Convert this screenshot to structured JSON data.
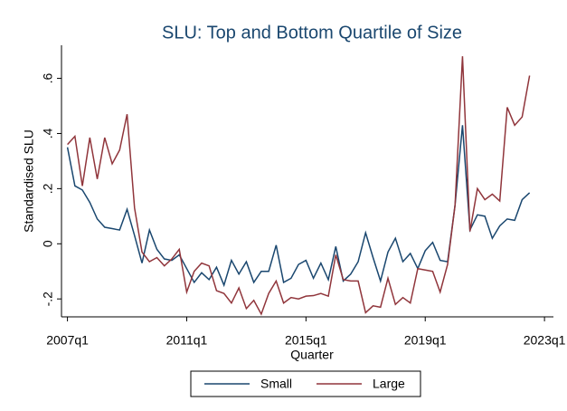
{
  "chart_data": {
    "type": "line",
    "title": "SLU: Top and Bottom Quartile of Size",
    "xlabel": "Quarter",
    "ylabel": "Standardised SLU",
    "x": [
      2007,
      2007.25,
      2007.5,
      2007.75,
      2008,
      2008.25,
      2008.5,
      2008.75,
      2009,
      2009.25,
      2009.5,
      2009.75,
      2010,
      2010.25,
      2010.5,
      2010.75,
      2011,
      2011.25,
      2011.5,
      2011.75,
      2012,
      2012.25,
      2012.5,
      2012.75,
      2013,
      2013.25,
      2013.5,
      2013.75,
      2014,
      2014.25,
      2014.5,
      2014.75,
      2015,
      2015.25,
      2015.5,
      2015.75,
      2016,
      2016.25,
      2016.5,
      2016.75,
      2017,
      2017.25,
      2017.5,
      2017.75,
      2018,
      2018.25,
      2018.5,
      2018.75,
      2019,
      2019.25,
      2019.5,
      2019.75,
      2020,
      2020.25,
      2020.5,
      2020.75,
      2021,
      2021.25,
      2021.5,
      2021.75,
      2022,
      2022.25,
      2022.5
    ],
    "series": [
      {
        "name": "Small",
        "color": "#1a476f",
        "values": [
          0.35,
          0.21,
          0.195,
          0.15,
          0.09,
          0.06,
          0.055,
          0.05,
          0.125,
          0.03,
          -0.07,
          0.05,
          -0.02,
          -0.055,
          -0.06,
          -0.04,
          -0.09,
          -0.14,
          -0.105,
          -0.13,
          -0.085,
          -0.15,
          -0.06,
          -0.11,
          -0.065,
          -0.14,
          -0.1,
          -0.1,
          -0.005,
          -0.14,
          -0.125,
          -0.075,
          -0.06,
          -0.125,
          -0.07,
          -0.13,
          -0.01,
          -0.135,
          -0.11,
          -0.065,
          0.04,
          -0.05,
          -0.135,
          -0.03,
          0.02,
          -0.065,
          -0.035,
          -0.09,
          -0.025,
          0.005,
          -0.06,
          -0.065,
          0.14,
          0.43,
          0.05,
          0.105,
          0.1,
          0.02,
          0.065,
          0.09,
          0.085,
          0.16,
          0.185
        ]
      },
      {
        "name": "Large",
        "color": "#90353b",
        "values": [
          0.36,
          0.39,
          0.21,
          0.385,
          0.235,
          0.385,
          0.29,
          0.34,
          0.47,
          0.13,
          -0.03,
          -0.065,
          -0.05,
          -0.08,
          -0.055,
          -0.02,
          -0.175,
          -0.1,
          -0.07,
          -0.08,
          -0.17,
          -0.18,
          -0.215,
          -0.16,
          -0.235,
          -0.205,
          -0.255,
          -0.18,
          -0.135,
          -0.215,
          -0.195,
          -0.2,
          -0.19,
          -0.188,
          -0.18,
          -0.19,
          -0.04,
          -0.13,
          -0.135,
          -0.135,
          -0.25,
          -0.225,
          -0.23,
          -0.125,
          -0.22,
          -0.195,
          -0.215,
          -0.09,
          -0.095,
          -0.1,
          -0.175,
          -0.075,
          0.14,
          0.68,
          0.045,
          0.2,
          0.16,
          0.18,
          0.155,
          0.495,
          0.43,
          0.46,
          0.61
        ]
      }
    ],
    "xlim": [
      2006.8,
      2023.3
    ],
    "ylim": [
      -0.265,
      0.72
    ],
    "xticks": [
      {
        "value": 2007,
        "label": "2007q1"
      },
      {
        "value": 2011,
        "label": "2011q1"
      },
      {
        "value": 2015,
        "label": "2015q1"
      },
      {
        "value": 2019,
        "label": "2019q1"
      },
      {
        "value": 2023,
        "label": "2023q1"
      }
    ],
    "yticks": [
      {
        "value": -0.2,
        "label": "-.2"
      },
      0,
      {
        "value": 0.2,
        "label": ".2"
      },
      {
        "value": 0.4,
        "label": ".4"
      },
      {
        "value": 0.6,
        "label": ".6"
      }
    ],
    "grid": false,
    "legend": "bottom"
  }
}
